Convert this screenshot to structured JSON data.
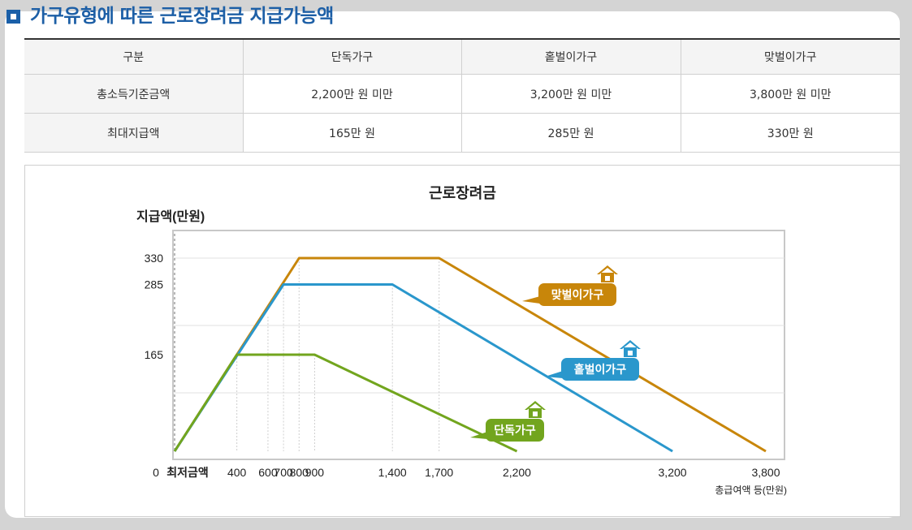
{
  "page_title": "가구유형에 따른 근로장려금 지급가능액",
  "table": {
    "headers": [
      "구분",
      "단독가구",
      "홑벌이가구",
      "맞벌이가구"
    ],
    "rows": [
      [
        "총소득기준금액",
        "2,200만 원 미만",
        "3,200만 원 미만",
        "3,800만 원 미만"
      ],
      [
        "최대지급액",
        "165만 원",
        "285만 원",
        "330만 원"
      ]
    ]
  },
  "colors": {
    "single": "#72a51e",
    "single_earner": "#2a97cc",
    "dual_earner": "#c8860a",
    "title_blue": "#1d5fa6"
  },
  "chart_data": {
    "type": "line",
    "title": "근로장려금",
    "ylabel": "지급액(만원)",
    "xlabel": "총급여액 등(만원)",
    "x_tick_labels": [
      "0",
      "최저금액",
      "400",
      "600",
      "700",
      "800",
      "900",
      "1,400",
      "1,700",
      "2,200",
      "3,200",
      "3,800"
    ],
    "y_tick_labels": [
      "330",
      "285",
      "165"
    ],
    "ylim": [
      0,
      370
    ],
    "grid": true,
    "series": [
      {
        "name": "맞벌이가구",
        "color_key": "dual_earner",
        "points": [
          [
            0,
            0
          ],
          [
            800,
            330
          ],
          [
            1700,
            330
          ],
          [
            3800,
            0
          ]
        ]
      },
      {
        "name": "홑벌이가구",
        "color_key": "single_earner",
        "points": [
          [
            0,
            0
          ],
          [
            700,
            285
          ],
          [
            1400,
            285
          ],
          [
            3200,
            0
          ]
        ]
      },
      {
        "name": "단독가구",
        "color_key": "single",
        "points": [
          [
            0,
            0
          ],
          [
            400,
            165
          ],
          [
            900,
            165
          ],
          [
            2200,
            0
          ]
        ]
      }
    ]
  }
}
